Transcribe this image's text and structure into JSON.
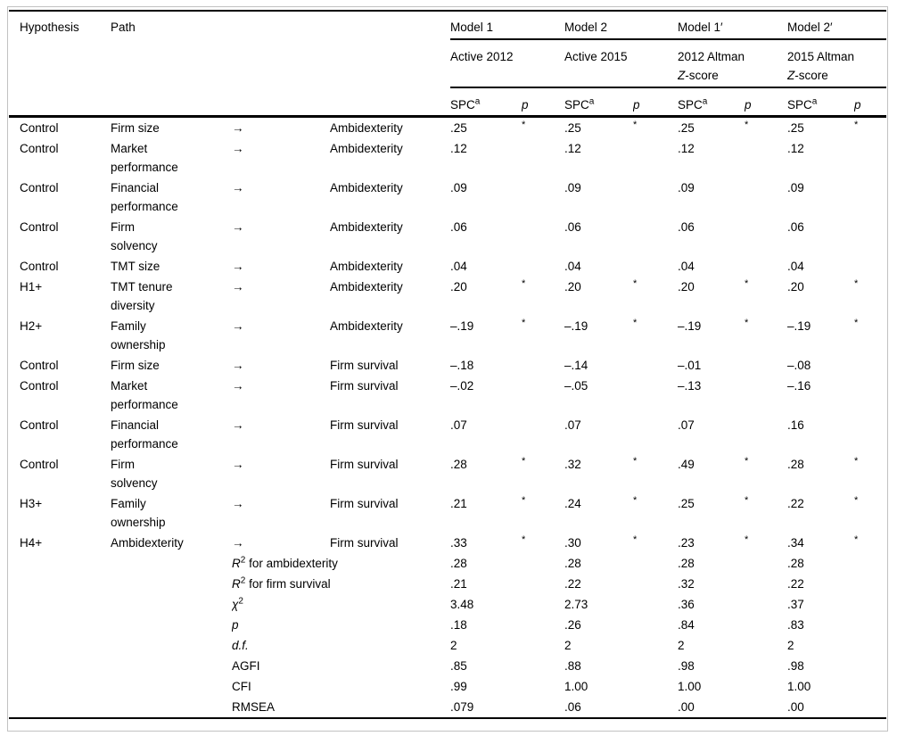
{
  "table": {
    "headers": {
      "hypothesis": "Hypothesis",
      "path": "Path",
      "spc_label": "SPC",
      "spc_sup": "a",
      "p_label": "p",
      "models": [
        {
          "name": "Model 1",
          "sub_line1": "Active 2012",
          "sub_italic": "",
          "sub_line2_rest": ""
        },
        {
          "name": "Model 2",
          "sub_line1": "Active 2015",
          "sub_italic": "",
          "sub_line2_rest": ""
        },
        {
          "name": "Model 1′",
          "sub_line1": "2012 Altman",
          "sub_italic": "Z",
          "sub_line2_rest": "-score"
        },
        {
          "name": "Model 2′",
          "sub_line1": "2015 Altman",
          "sub_italic": "Z",
          "sub_line2_rest": "-score"
        }
      ]
    },
    "rows": [
      {
        "hypothesis": "Control",
        "path": "Firm size",
        "arrow": "→",
        "target": "Ambidexterity",
        "values": [
          ".25",
          ".25",
          ".25",
          ".25"
        ],
        "sig": [
          "*",
          "*",
          "*",
          "*"
        ]
      },
      {
        "hypothesis": "Control",
        "path": "Market\nperformance",
        "arrow": "→",
        "target": "Ambidexterity",
        "values": [
          ".12",
          ".12",
          ".12",
          ".12"
        ],
        "sig": [
          "",
          "",
          "",
          ""
        ]
      },
      {
        "hypothesis": "Control",
        "path": "Financial\nperformance",
        "arrow": "→",
        "target": "Ambidexterity",
        "values": [
          ".09",
          ".09",
          ".09",
          ".09"
        ],
        "sig": [
          "",
          "",
          "",
          ""
        ]
      },
      {
        "hypothesis": "Control",
        "path": "Firm\nsolvency",
        "arrow": "→",
        "target": "Ambidexterity",
        "values": [
          ".06",
          ".06",
          ".06",
          ".06"
        ],
        "sig": [
          "",
          "",
          "",
          ""
        ]
      },
      {
        "hypothesis": "Control",
        "path": "TMT size",
        "arrow": "→",
        "target": "Ambidexterity",
        "values": [
          ".04",
          ".04",
          ".04",
          ".04"
        ],
        "sig": [
          "",
          "",
          "",
          ""
        ]
      },
      {
        "hypothesis": "H1+",
        "path": "TMT tenure\ndiversity",
        "arrow": "→",
        "target": "Ambidexterity",
        "values": [
          ".20",
          ".20",
          ".20",
          ".20"
        ],
        "sig": [
          "*",
          "*",
          "*",
          "*"
        ]
      },
      {
        "hypothesis": "H2+",
        "path": "Family\nownership",
        "arrow": "→",
        "target": "Ambidexterity",
        "values": [
          "–.19",
          "–.19",
          "–.19",
          "–.19"
        ],
        "sig": [
          "*",
          "*",
          "*",
          "*"
        ]
      },
      {
        "hypothesis": "Control",
        "path": "Firm size",
        "arrow": "→",
        "target": "Firm survival",
        "values": [
          "–.18",
          "–.14",
          "–.01",
          "–.08"
        ],
        "sig": [
          "",
          "",
          "",
          ""
        ]
      },
      {
        "hypothesis": "Control",
        "path": "Market\nperformance",
        "arrow": "→",
        "target": "Firm survival",
        "values": [
          "–.02",
          "–.05",
          "–.13",
          "–.16"
        ],
        "sig": [
          "",
          "",
          "",
          ""
        ]
      },
      {
        "hypothesis": "Control",
        "path": "Financial\nperformance",
        "arrow": "→",
        "target": "Firm survival",
        "values": [
          ".07",
          ".07",
          ".07",
          ".16"
        ],
        "sig": [
          "",
          "",
          "",
          ""
        ]
      },
      {
        "hypothesis": "Control",
        "path": "Firm\nsolvency",
        "arrow": "→",
        "target": "Firm survival",
        "values": [
          ".28",
          ".32",
          ".49",
          ".28"
        ],
        "sig": [
          "*",
          "*",
          "*",
          "*"
        ]
      },
      {
        "hypothesis": "H3+",
        "path": "Family\nownership",
        "arrow": "→",
        "target": "Firm survival",
        "values": [
          ".21",
          ".24",
          ".25",
          ".22"
        ],
        "sig": [
          "*",
          "*",
          "*",
          "*"
        ]
      },
      {
        "hypothesis": "H4+",
        "path": "Ambidexterity",
        "arrow": "→",
        "target": "Firm survival",
        "values": [
          ".33",
          ".30",
          ".23",
          ".34"
        ],
        "sig": [
          "*",
          "*",
          "*",
          "*"
        ]
      }
    ],
    "stats": [
      {
        "label_italic": "R",
        "label_sup": "2",
        "label_rest": " for ambidexterity",
        "values": [
          ".28",
          ".28",
          ".28",
          ".28"
        ]
      },
      {
        "label_italic": "R",
        "label_sup": "2",
        "label_rest": " for firm survival",
        "values": [
          ".21",
          ".22",
          ".32",
          ".22"
        ]
      },
      {
        "label_italic": "χ",
        "label_sup": "2",
        "label_rest": "",
        "values": [
          "3.48",
          "2.73",
          ".36",
          ".37"
        ]
      },
      {
        "label_italic": "p",
        "label_sup": "",
        "label_rest": "",
        "values": [
          ".18",
          ".26",
          ".84",
          ".83"
        ]
      },
      {
        "label_italic": "d.f.",
        "label_sup": "",
        "label_rest": "",
        "values": [
          "2",
          "2",
          "2",
          "2"
        ]
      },
      {
        "label_italic": "",
        "label_sup": "",
        "label_rest": "AGFI",
        "values": [
          ".85",
          ".88",
          ".98",
          ".98"
        ]
      },
      {
        "label_italic": "",
        "label_sup": "",
        "label_rest": "CFI",
        "values": [
          ".99",
          "1.00",
          "1.00",
          "1.00"
        ]
      },
      {
        "label_italic": "",
        "label_sup": "",
        "label_rest": "RMSEA",
        "values": [
          ".079",
          ".06",
          ".00",
          ".00"
        ]
      }
    ]
  }
}
